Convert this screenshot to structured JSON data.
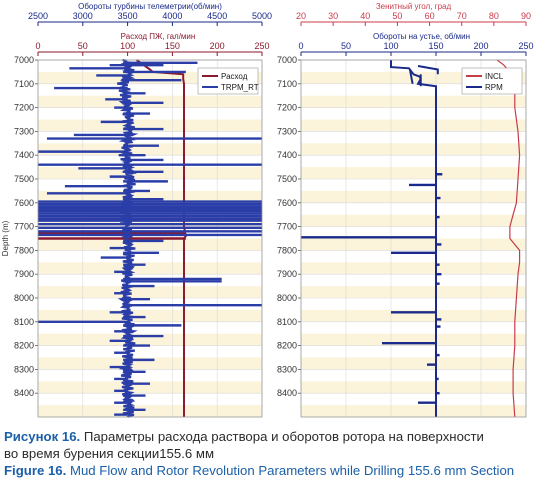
{
  "colors": {
    "blue": "#2b3ea8",
    "red": "#8b1a2e",
    "red_axis": "#c83c4a",
    "navy": "#1a2a8a",
    "band": "#fbf4da",
    "grid": "#d9d9d9"
  },
  "chart_data": [
    {
      "type": "line",
      "panel": "left",
      "ylabel": "Depth (m)",
      "ylim": [
        8500,
        7000
      ],
      "y_ticks": [
        "7000",
        "7100",
        "7200",
        "7300",
        "7400",
        "7500",
        "7600",
        "7700",
        "7800",
        "7900",
        "8000",
        "8100",
        "8200",
        "8300",
        "8400"
      ],
      "grid": true,
      "legend_placement": "top-right",
      "top_axis": {
        "label": "Обороты турбины телеметрии(об/мин)",
        "range": [
          2500,
          5000
        ],
        "ticks": [
          "2500",
          "3000",
          "3500",
          "4000",
          "4500",
          "5000"
        ],
        "color": "#1a2a8a"
      },
      "mid_axis": {
        "label": "Расход ПЖ, гал/мин",
        "range": [
          0,
          250
        ],
        "ticks": [
          "0",
          "50",
          "100",
          "150",
          "200",
          "250"
        ],
        "color": "#8b1a2e"
      },
      "series": [
        {
          "name": "Расход",
          "axis": "mid",
          "color": "#8b1a2e",
          "points": [
            [
              7000,
              110
            ],
            [
              7040,
              125
            ],
            [
              7050,
              128
            ],
            [
              7060,
              162
            ],
            [
              7080,
              162
            ],
            [
              7100,
              163
            ],
            [
              7700,
              163
            ],
            [
              7740,
              165
            ],
            [
              7750,
              163
            ],
            [
              8500,
              163
            ]
          ],
          "spikes": [
            [
              7730,
              0,
              165
            ],
            [
              7750,
              0,
              165
            ]
          ]
        },
        {
          "name": "TRPM_RT",
          "axis": "top",
          "color": "#2b3ea8",
          "base": [
            [
              7000,
              3480
            ],
            [
              7050,
              3520
            ],
            [
              7100,
              3450
            ],
            [
              7200,
              3500
            ],
            [
              7300,
              3520
            ],
            [
              7400,
              3480
            ],
            [
              7500,
              3530
            ],
            [
              7600,
              3500
            ],
            [
              7700,
              3480
            ],
            [
              7800,
              3520
            ],
            [
              7900,
              3500
            ],
            [
              8000,
              3480
            ],
            [
              8100,
              3510
            ],
            [
              8200,
              3520
            ],
            [
              8300,
              3490
            ],
            [
              8400,
              3500
            ],
            [
              8500,
              3520
            ]
          ],
          "spikes": [
            [
              7012,
              3450,
              4280
            ],
            [
              7022,
              3300,
              3900
            ],
            [
              7035,
              2850,
              3500
            ],
            [
              7050,
              3450,
              4150
            ],
            [
              7065,
              3150,
              3500
            ],
            [
              7085,
              3450,
              4100
            ],
            [
              7118,
              2680,
              3500
            ],
            [
              7140,
              3450,
              3700
            ],
            [
              7165,
              3250,
              3500
            ],
            [
              7180,
              3450,
              3900
            ],
            [
              7200,
              3350,
              3500
            ],
            [
              7225,
              3450,
              3750
            ],
            [
              7260,
              3200,
              3500
            ],
            [
              7290,
              3450,
              3900
            ],
            [
              7315,
              2900,
              3500
            ],
            [
              7330,
              2600,
              5000
            ],
            [
              7360,
              3450,
              3850
            ],
            [
              7385,
              2500,
              3500
            ],
            [
              7400,
              3400,
              3700
            ],
            [
              7420,
              3450,
              3900
            ],
            [
              7440,
              2500,
              5000
            ],
            [
              7455,
              2950,
              3500
            ],
            [
              7470,
              3450,
              3900
            ],
            [
              7490,
              3300,
              3500
            ],
            [
              7510,
              3450,
              3950
            ],
            [
              7530,
              2800,
              3500
            ],
            [
              7550,
              3450,
              3750
            ],
            [
              7560,
              2600,
              3500
            ],
            [
              7585,
              3450,
              3900
            ],
            [
              7595,
              2500,
              5000
            ],
            [
              7605,
              2500,
              5000
            ],
            [
              7615,
              2500,
              5000
            ],
            [
              7625,
              2500,
              5000
            ],
            [
              7635,
              2500,
              5000
            ],
            [
              7645,
              2500,
              5000
            ],
            [
              7655,
              2500,
              5000
            ],
            [
              7665,
              2500,
              5000
            ],
            [
              7675,
              2500,
              5000
            ],
            [
              7690,
              2500,
              5000
            ],
            [
              7705,
              2500,
              5000
            ],
            [
              7720,
              2500,
              5000
            ],
            [
              7735,
              2500,
              5000
            ],
            [
              7760,
              3450,
              3900
            ],
            [
              7790,
              3300,
              3500
            ],
            [
              7810,
              3450,
              3850
            ],
            [
              7830,
              3200,
              3500
            ],
            [
              7860,
              3450,
              3700
            ],
            [
              7890,
              3350,
              3500
            ],
            [
              7920,
              3450,
              4550
            ],
            [
              7930,
              3450,
              4550
            ],
            [
              7950,
              3450,
              3800
            ],
            [
              7980,
              3350,
              3500
            ],
            [
              8005,
              3450,
              3750
            ],
            [
              8030,
              3450,
              5000
            ],
            [
              8060,
              3300,
              3500
            ],
            [
              8080,
              3450,
              3700
            ],
            [
              8100,
              2500,
              3500
            ],
            [
              8115,
              3450,
              4100
            ],
            [
              8140,
              3350,
              3500
            ],
            [
              8160,
              3450,
              3900
            ],
            [
              8180,
              3300,
              3500
            ],
            [
              8200,
              3450,
              3750
            ],
            [
              8230,
              3350,
              3500
            ],
            [
              8260,
              3450,
              3800
            ],
            [
              8290,
              3300,
              3500
            ],
            [
              8310,
              3450,
              3700
            ],
            [
              8340,
              3350,
              3500
            ],
            [
              8360,
              3450,
              3750
            ],
            [
              8390,
              3350,
              3500
            ],
            [
              8410,
              3450,
              3700
            ],
            [
              8440,
              3350,
              3500
            ],
            [
              8470,
              3450,
              3700
            ],
            [
              8490,
              3350,
              3500
            ]
          ]
        }
      ]
    },
    {
      "type": "line",
      "panel": "right",
      "ylim": [
        8500,
        7000
      ],
      "y_ticks": [
        "7000",
        "7100",
        "7200",
        "7300",
        "7400",
        "7500",
        "7600",
        "7700",
        "7800",
        "7900",
        "8000",
        "8100",
        "8200",
        "8300",
        "8400"
      ],
      "grid": true,
      "legend_placement": "top-right",
      "top_axis": {
        "label": "Зенитный угол, град",
        "range": [
          20,
          90
        ],
        "ticks": [
          "20",
          "30",
          "40",
          "50",
          "60",
          "70",
          "80",
          "90"
        ],
        "color": "#c83c4a"
      },
      "mid_axis": {
        "label": "Обороты на устье, об/мин",
        "range": [
          0,
          250
        ],
        "ticks": [
          "0",
          "50",
          "100",
          "150",
          "200",
          "250"
        ],
        "color": "#1a2a8a"
      },
      "series": [
        {
          "name": "INCL",
          "axis": "top",
          "color": "#c83c4a",
          "points": [
            [
              7000,
              81
            ],
            [
              7020,
              83
            ],
            [
              7050,
              85
            ],
            [
              7100,
              86.5
            ],
            [
              7200,
              86.5
            ],
            [
              7300,
              87.5
            ],
            [
              7400,
              88
            ],
            [
              7500,
              87.5
            ],
            [
              7600,
              87
            ],
            [
              7650,
              86
            ],
            [
              7700,
              85
            ],
            [
              7750,
              85
            ],
            [
              7800,
              88
            ],
            [
              7850,
              88
            ],
            [
              7900,
              87.5
            ],
            [
              8000,
              87
            ],
            [
              8100,
              86.5
            ],
            [
              8200,
              86.5
            ],
            [
              8300,
              86
            ],
            [
              8400,
              86
            ],
            [
              8500,
              86.5
            ]
          ]
        },
        {
          "name": "RPM",
          "axis": "mid",
          "color": "#1a2a8a",
          "points": [
            [
              7000,
              100
            ],
            [
              7030,
              100
            ],
            [
              7035,
              120
            ],
            [
              7060,
              125
            ],
            [
              7070,
              132
            ],
            [
              7080,
              133
            ],
            [
              7100,
              130
            ],
            [
              7110,
              150
            ],
            [
              7120,
              150
            ],
            [
              8500,
              150
            ]
          ],
          "extra_lines": [
            [
              [
                7025,
                130
              ],
              [
                7040,
                152
              ],
              [
                7060,
                152
              ]
            ],
            [
              [
                7040,
                121
              ],
              [
                7100,
                124
              ]
            ],
            [
              [
                7060,
                133
              ],
              [
                7110,
                133
              ]
            ]
          ],
          "spikes": [
            [
              7480,
              150,
              157
            ],
            [
              7525,
              120,
              150
            ],
            [
              7580,
              150,
              155
            ],
            [
              7660,
              150,
              154
            ],
            [
              7745,
              0,
              150
            ],
            [
              7775,
              150,
              156
            ],
            [
              7810,
              100,
              150
            ],
            [
              7860,
              150,
              154
            ],
            [
              7900,
              150,
              156
            ],
            [
              7940,
              150,
              154
            ],
            [
              8060,
              100,
              150
            ],
            [
              8090,
              150,
              156
            ],
            [
              8120,
              150,
              155
            ],
            [
              8190,
              90,
              150
            ],
            [
              8240,
              150,
              154
            ],
            [
              8280,
              140,
              150
            ],
            [
              8340,
              150,
              153
            ],
            [
              8400,
              150,
              154
            ],
            [
              8440,
              130,
              150
            ]
          ]
        }
      ]
    }
  ],
  "captions": {
    "ru_label": "Рисунок 16.",
    "ru_text": " Параметры расхода раствора и оборотов ротора на поверхности",
    "ru_text2": "во время бурения секции155.6 мм",
    "en_label": "Figure 16.",
    "en_text": " Mud Flow and Rotor Revolution Parameters while Drilling 155.6 mm Section"
  }
}
